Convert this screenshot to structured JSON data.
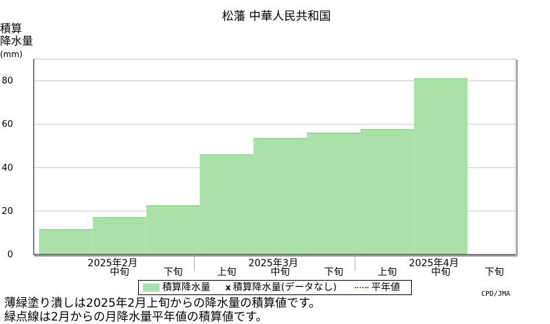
{
  "chart_data": {
    "type": "bar",
    "title": "松藩 中華人民共和国",
    "ylabel_lines": [
      "積算",
      "降水量",
      "(mm)"
    ],
    "ylim": [
      0,
      90
    ],
    "yticks": [
      0,
      20,
      40,
      60,
      80
    ],
    "grid": true,
    "categories": [
      "2月上旬",
      "2月中旬",
      "2月下旬",
      "3月上旬",
      "3月中旬",
      "3月下旬",
      "4月上旬",
      "4月中旬",
      "4月下旬"
    ],
    "series": [
      {
        "name": "積算降水量",
        "values": [
          11.5,
          17,
          22.5,
          46,
          53.5,
          56,
          57.5,
          81,
          null
        ],
        "color": "#a9e2a9"
      }
    ],
    "decade_labels": [
      "",
      "中旬",
      "下旬",
      "上旬",
      "中旬",
      "下旬",
      "上旬",
      "中旬",
      "下旬"
    ],
    "month_labels": [
      {
        "text": "2025年2月",
        "at": 1
      },
      {
        "text": "2025年3月",
        "at": 4
      },
      {
        "text": "2025年4月",
        "at": 7
      }
    ]
  },
  "legend": {
    "item1": "積算降水量",
    "item2_mark": "x",
    "item2": "積算降水量(データなし)",
    "item3": "平年値"
  },
  "credit": "CPD/JMA",
  "notes": [
    "薄緑塗り潰しは2025年2月上旬からの降水量の積算値です。",
    "緑点線は2月からの月降水量平年値の積算値です。"
  ]
}
